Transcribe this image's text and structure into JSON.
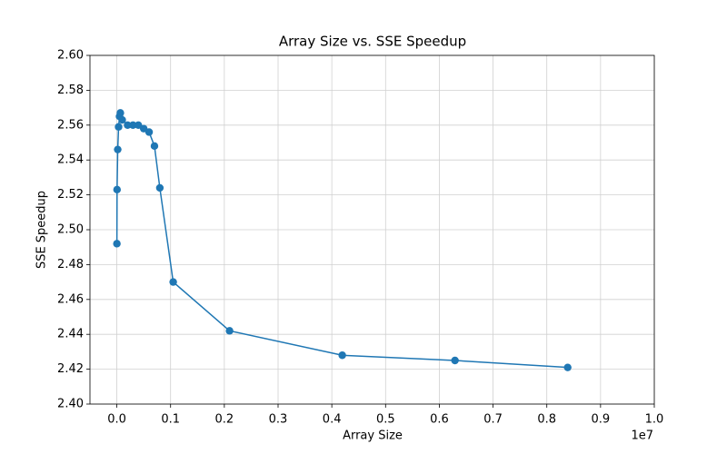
{
  "chart_data": {
    "type": "line",
    "title": "Array Size vs. SSE Speedup",
    "x_label": "Array Size",
    "y_label": "SSE Speedup",
    "x_offset_label": "1e7",
    "series": [
      {
        "color": "#1f77b4",
        "marker": "circle",
        "x": [
          1024,
          4096,
          16384,
          32768,
          50000,
          65536,
          100000,
          200000,
          300000,
          400000,
          500000,
          600000,
          700000,
          800000,
          1048576,
          2097152,
          4194304,
          6291456,
          8388608
        ],
        "values": [
          2.492,
          2.523,
          2.546,
          2.559,
          2.565,
          2.567,
          2.563,
          2.56,
          2.56,
          2.56,
          2.558,
          2.556,
          2.548,
          2.524,
          2.47,
          2.442,
          2.428,
          2.425,
          2.421
        ]
      }
    ],
    "xlim": [
      -500000,
      10000000
    ],
    "xticks": [
      {
        "value": 0,
        "label": "0.0"
      },
      {
        "value": 1000000,
        "label": "0.1"
      },
      {
        "value": 2000000,
        "label": "0.2"
      },
      {
        "value": 3000000,
        "label": "0.3"
      },
      {
        "value": 4000000,
        "label": "0.4"
      },
      {
        "value": 5000000,
        "label": "0.5"
      },
      {
        "value": 6000000,
        "label": "0.6"
      },
      {
        "value": 7000000,
        "label": "0.7"
      },
      {
        "value": 8000000,
        "label": "0.8"
      },
      {
        "value": 9000000,
        "label": "0.9"
      },
      {
        "value": 10000000,
        "label": "1.0"
      }
    ],
    "ylim": [
      2.4,
      2.6
    ],
    "yticks": [
      {
        "value": 2.4,
        "label": "2.40"
      },
      {
        "value": 2.42,
        "label": "2.42"
      },
      {
        "value": 2.44,
        "label": "2.44"
      },
      {
        "value": 2.46,
        "label": "2.46"
      },
      {
        "value": 2.48,
        "label": "2.48"
      },
      {
        "value": 2.5,
        "label": "2.50"
      },
      {
        "value": 2.52,
        "label": "2.52"
      },
      {
        "value": 2.54,
        "label": "2.54"
      },
      {
        "value": 2.56,
        "label": "2.56"
      },
      {
        "value": 2.58,
        "label": "2.58"
      },
      {
        "value": 2.6,
        "label": "2.60"
      }
    ],
    "grid": true
  }
}
